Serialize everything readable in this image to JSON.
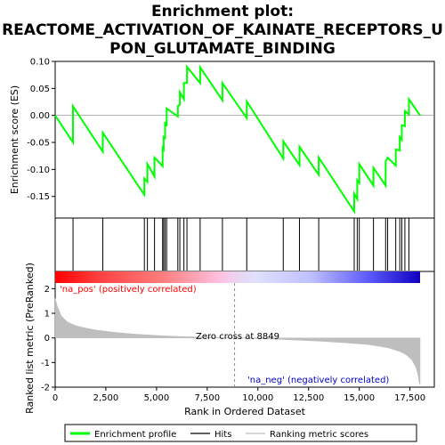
{
  "chart_data": [
    {
      "type": "line",
      "title": "Enrichment plot:\nREACTOME_ACTIVATION_OF_KAINATE_RECEPTORS_U\nPON_GLUTAMATE_BINDING",
      "ylabel": "Enrichment score (ES)",
      "xlim": [
        0,
        18000
      ],
      "ylim": [
        -0.19,
        0.1
      ],
      "yticks": [
        "0.10",
        "0.05",
        "0.00",
        "-0.05",
        "-0.10",
        "-0.15"
      ],
      "grid": false,
      "series": [
        {
          "name": "Enrichment profile",
          "color": "#00ff00",
          "x": [
            0,
            880,
            880,
            2350,
            2350,
            4400,
            4400,
            4550,
            4550,
            4900,
            4900,
            5300,
            5300,
            5350,
            5350,
            5420,
            5420,
            5500,
            5500,
            6050,
            6050,
            6150,
            6150,
            6350,
            6350,
            6500,
            6500,
            7150,
            7150,
            8250,
            8250,
            9450,
            9450,
            11250,
            11250,
            12050,
            12050,
            13000,
            13000,
            14750,
            14750,
            14900,
            14900,
            15000,
            15000,
            15700,
            15700,
            16300,
            16300,
            16400,
            16400,
            16800,
            16800,
            17000,
            17000,
            17100,
            17100,
            17250,
            17250,
            17450,
            17450,
            18000
          ],
          "y": [
            0.0,
            -0.05,
            0.017,
            -0.067,
            -0.032,
            -0.147,
            -0.117,
            -0.123,
            -0.09,
            -0.113,
            -0.078,
            -0.094,
            -0.06,
            -0.063,
            -0.04,
            -0.042,
            -0.012,
            -0.02,
            0.013,
            -0.002,
            0.017,
            0.02,
            0.043,
            0.03,
            0.06,
            0.06,
            0.09,
            0.06,
            0.089,
            0.028,
            0.06,
            -0.005,
            0.026,
            -0.08,
            -0.048,
            -0.092,
            -0.058,
            -0.11,
            -0.078,
            -0.178,
            -0.145,
            -0.155,
            -0.12,
            -0.125,
            -0.09,
            -0.13,
            -0.097,
            -0.13,
            -0.085,
            -0.078,
            -0.078,
            -0.093,
            -0.063,
            -0.065,
            -0.04,
            -0.045,
            -0.018,
            -0.02,
            0.008,
            0.002,
            0.03,
            0.0
          ]
        }
      ]
    },
    {
      "type": "scatter",
      "name": "Hits",
      "series": [
        {
          "name": "Hits",
          "color": "#000000",
          "x": [
            880,
            2350,
            4400,
            4550,
            4900,
            5300,
            5350,
            5420,
            5500,
            6050,
            6150,
            6350,
            6500,
            7150,
            8250,
            9450,
            11250,
            12050,
            13000,
            14750,
            14900,
            15000,
            15700,
            16300,
            16400,
            16800,
            17000,
            17100,
            17250,
            17450
          ]
        }
      ]
    },
    {
      "type": "area",
      "xlabel": "Rank in Ordered Dataset",
      "ylabel": "Ranked list metric (PreRanked)",
      "xlim": [
        0,
        18000
      ],
      "ylim": [
        -2,
        2.7
      ],
      "xticks": [
        "0",
        "2,500",
        "5,000",
        "7,500",
        "10,000",
        "12,500",
        "15,000",
        "17,500"
      ],
      "yticks": [
        "2",
        "1",
        "0",
        "-1",
        "-2"
      ],
      "zero_cross": 8849,
      "zero_cross_label": "Zero cross at 8849",
      "pos_label": "'na_pos' (positively correlated)",
      "neg_label": "'na_neg' (negatively correlated)",
      "series": [
        {
          "name": "Ranking metric scores",
          "color": "#bebebe",
          "x": [
            0,
            100,
            300,
            600,
            1000,
            1500,
            2000,
            3000,
            4000,
            5000,
            6000,
            7000,
            8000,
            8849,
            10000,
            11000,
            12000,
            13000,
            14000,
            15000,
            15500,
            16000,
            16500,
            17000,
            17300,
            17600,
            17800,
            17900,
            17950,
            18000
          ],
          "y": [
            1.6,
            1.3,
            0.9,
            0.65,
            0.5,
            0.4,
            0.32,
            0.22,
            0.15,
            0.1,
            0.06,
            0.04,
            0.02,
            0.0,
            -0.03,
            -0.06,
            -0.09,
            -0.13,
            -0.18,
            -0.24,
            -0.28,
            -0.34,
            -0.42,
            -0.55,
            -0.68,
            -0.9,
            -1.2,
            -1.5,
            -1.8,
            -1.9
          ]
        }
      ]
    }
  ],
  "legend": {
    "items": [
      {
        "label": "Enrichment profile",
        "color": "#00ff00"
      },
      {
        "label": "Hits",
        "color": "#000000"
      },
      {
        "label": "Ranking metric scores",
        "color": "#bebebe"
      }
    ]
  }
}
